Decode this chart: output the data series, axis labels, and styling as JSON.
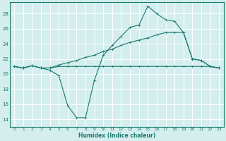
{
  "title": "",
  "xlabel": "Humidex (Indice chaleur)",
  "bg_color": "#d4eeee",
  "grid_color": "#b8d8d8",
  "line_color": "#1a7a6e",
  "xlim": [
    -0.5,
    23.5
  ],
  "ylim": [
    13,
    29.5
  ],
  "xticks": [
    0,
    1,
    2,
    3,
    4,
    5,
    6,
    7,
    8,
    9,
    10,
    11,
    12,
    13,
    14,
    15,
    16,
    17,
    18,
    19,
    20,
    21,
    22,
    23
  ],
  "yticks": [
    14,
    16,
    18,
    20,
    22,
    24,
    26,
    28
  ],
  "line1_x": [
    0,
    1,
    2,
    3,
    4,
    5,
    6,
    7,
    8,
    9,
    10,
    11,
    12,
    13,
    14,
    15,
    16,
    17,
    18,
    19,
    20,
    21,
    22,
    23
  ],
  "line1_y": [
    21.0,
    20.8,
    21.1,
    20.8,
    20.8,
    21.0,
    21.0,
    21.0,
    21.0,
    21.0,
    21.0,
    21.0,
    21.0,
    21.0,
    21.0,
    21.0,
    21.0,
    21.0,
    21.0,
    21.0,
    21.0,
    21.0,
    21.0,
    20.8
  ],
  "line2_x": [
    0,
    1,
    2,
    3,
    4,
    5,
    6,
    7,
    8,
    9,
    10,
    11,
    12,
    13,
    14,
    15,
    16,
    17,
    18,
    19,
    20,
    21,
    22,
    23
  ],
  "line2_y": [
    21.0,
    20.8,
    21.1,
    20.8,
    20.8,
    21.2,
    21.5,
    21.8,
    22.2,
    22.5,
    23.0,
    23.3,
    23.8,
    24.2,
    24.5,
    24.8,
    25.2,
    25.5,
    25.5,
    25.5,
    22.0,
    21.8,
    21.0,
    20.8
  ],
  "line3_x": [
    0,
    1,
    2,
    3,
    4,
    5,
    6,
    7,
    8,
    9,
    10,
    11,
    12,
    13,
    14,
    15,
    16,
    17,
    18,
    19,
    20,
    21,
    22,
    23
  ],
  "line3_y": [
    21.0,
    20.8,
    21.1,
    20.8,
    20.5,
    19.8,
    15.8,
    14.2,
    14.2,
    19.2,
    22.5,
    23.8,
    25.0,
    26.2,
    26.5,
    29.0,
    28.0,
    27.2,
    27.0,
    25.5,
    22.0,
    21.8,
    21.0,
    20.8
  ]
}
